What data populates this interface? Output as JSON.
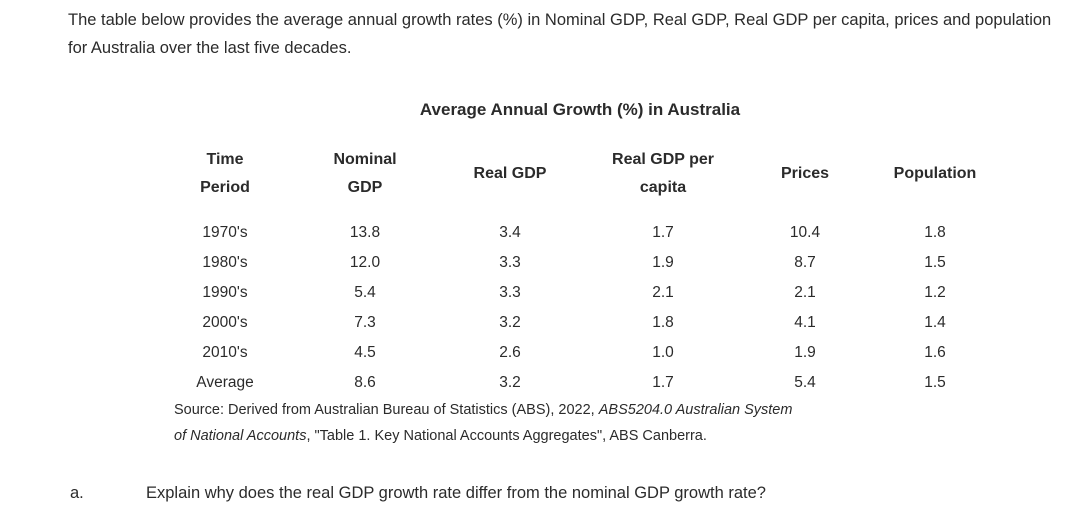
{
  "intro": "The table below provides the average annual growth rates (%) in Nominal GDP, Real GDP, Real GDP per capita, prices and population for Australia over the last five decades.",
  "table": {
    "title": "Average Annual Growth (%) in Australia",
    "headers": [
      [
        "Time",
        "Period"
      ],
      [
        "Nominal",
        "GDP"
      ],
      [
        "Real GDP"
      ],
      [
        "Real GDP per",
        "capita"
      ],
      [
        "Prices"
      ],
      [
        "Population"
      ]
    ],
    "rows": [
      [
        "1970's",
        "13.8",
        "3.4",
        "1.7",
        "10.4",
        "1.8"
      ],
      [
        "1980's",
        "12.0",
        "3.3",
        "1.9",
        "8.7",
        "1.5"
      ],
      [
        "1990's",
        "5.4",
        "3.3",
        "2.1",
        "2.1",
        "1.2"
      ],
      [
        "2000's",
        "7.3",
        "3.2",
        "1.8",
        "4.1",
        "1.4"
      ],
      [
        "2010's",
        "4.5",
        "2.6",
        "1.0",
        "1.9",
        "1.6"
      ],
      [
        "Average",
        "8.6",
        "3.2",
        "1.7",
        "5.4",
        "1.5"
      ]
    ]
  },
  "source": {
    "prefix": "Source: Derived from Australian Bureau of Statistics (ABS), 2022, ",
    "italic1": "ABS5204.0 Australian System",
    "italic2": "of National Accounts",
    "suffix": ", \"Table 1. Key National Accounts Aggregates\", ABS Canberra."
  },
  "question": {
    "label": "a.",
    "text": "Explain why does the real GDP growth rate differ from the nominal GDP growth rate?"
  }
}
